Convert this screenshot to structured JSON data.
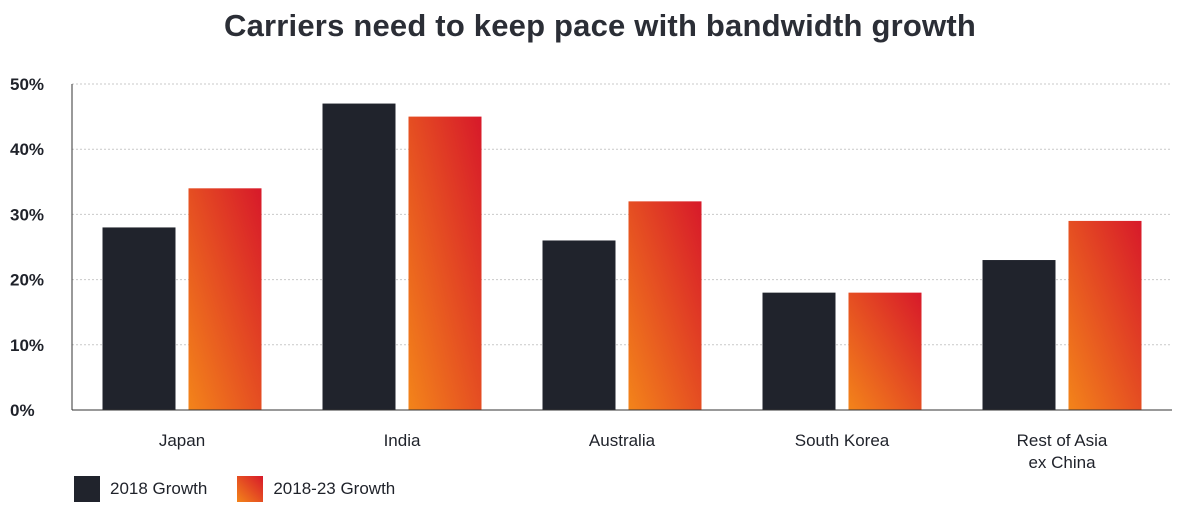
{
  "chart_data": {
    "type": "bar",
    "title": "Carriers need to keep pace with bandwidth growth",
    "categories": [
      [
        "Japan"
      ],
      [
        "India"
      ],
      [
        "Australia"
      ],
      [
        "South Korea"
      ],
      [
        "Rest of Asia",
        "ex China"
      ]
    ],
    "series": [
      {
        "name": "2018 Growth",
        "values": [
          28,
          47,
          26,
          18,
          23
        ]
      },
      {
        "name": "2018-23 Growth",
        "values": [
          34,
          45,
          32,
          18,
          29
        ]
      }
    ],
    "ylim": [
      0,
      50
    ],
    "yticks": [
      0,
      10,
      20,
      30,
      40,
      50
    ],
    "ytick_labels": [
      "0%",
      "10%",
      "20%",
      "30%",
      "40%",
      "50%"
    ],
    "grid": true,
    "legend_position": "bottom-left",
    "colors": {
      "series1": "#20232c",
      "series2_top": "#d7192a",
      "series2_bottom": "#f3841a",
      "gridline": "#c9c9c9",
      "axis": "#333333"
    }
  }
}
